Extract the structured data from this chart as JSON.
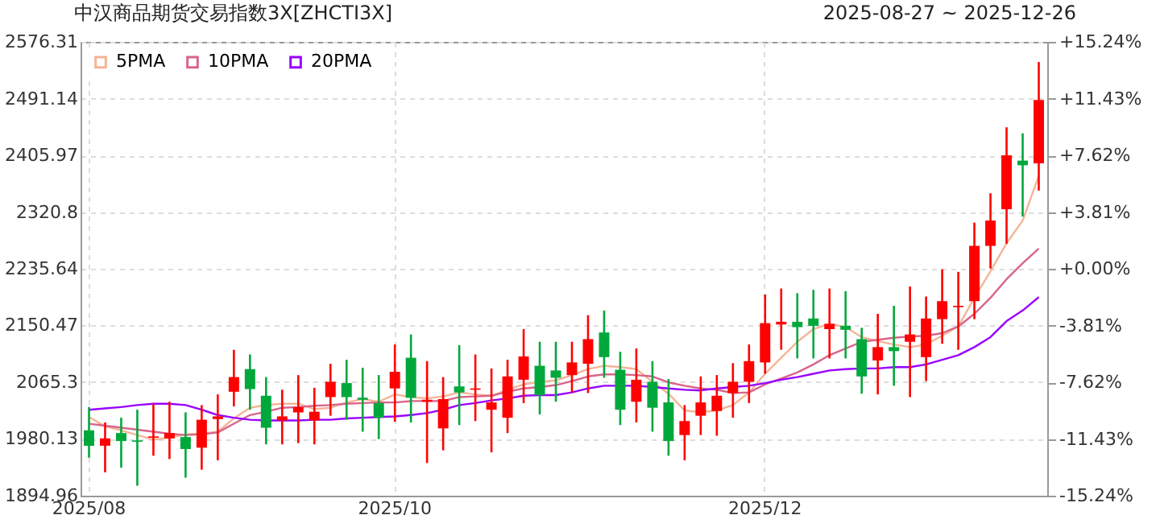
{
  "chart_data": {
    "type": "candlestick",
    "title": "中汉商品期货交易指数3X[ZHCTI3X]",
    "subtitle": "2025-08-27 ~ 2025-12-26",
    "categories": [
      "2025/08",
      null,
      null,
      null,
      null,
      null,
      null,
      null,
      null,
      null,
      null,
      null,
      null,
      null,
      null,
      null,
      null,
      null,
      null,
      "2025/10",
      null,
      null,
      null,
      null,
      null,
      null,
      null,
      null,
      null,
      null,
      null,
      null,
      null,
      null,
      null,
      null,
      null,
      null,
      null,
      null,
      null,
      null,
      "2025/12",
      null,
      null,
      null,
      null,
      null,
      null,
      null,
      null,
      null,
      null,
      null,
      null,
      null,
      null,
      null,
      null,
      null
    ],
    "ohlc": [
      [
        1993,
        2028,
        1952,
        1970
      ],
      [
        1970,
        2005,
        1930,
        1981
      ],
      [
        1989,
        2012,
        1937,
        1977
      ],
      [
        1978,
        2024,
        1910,
        1976
      ],
      [
        1982,
        2033,
        1955,
        1984
      ],
      [
        1981,
        2036,
        1950,
        1989
      ],
      [
        1983,
        2020,
        1922,
        1965
      ],
      [
        1967,
        2031,
        1934,
        2009
      ],
      [
        2010,
        2047,
        1948,
        2014
      ],
      [
        2051,
        2114,
        2029,
        2073
      ],
      [
        2085,
        2107,
        2024,
        2055
      ],
      [
        2045,
        2073,
        1972,
        1997
      ],
      [
        2008,
        2054,
        1972,
        2014
      ],
      [
        2020,
        2076,
        1974,
        2028
      ],
      [
        2008,
        2057,
        1972,
        2021
      ],
      [
        2043,
        2093,
        2015,
        2066
      ],
      [
        2064,
        2099,
        2009,
        2043
      ],
      [
        2042,
        2087,
        1991,
        2039
      ],
      [
        2034,
        2076,
        1980,
        2012
      ],
      [
        2056,
        2122,
        2006,
        2081
      ],
      [
        2102,
        2137,
        2005,
        2042
      ],
      [
        2036,
        2097,
        1944,
        2039
      ],
      [
        1996,
        2073,
        1963,
        2040
      ],
      [
        2059,
        2121,
        2001,
        2050
      ],
      [
        2054,
        2107,
        2007,
        2056
      ],
      [
        2024,
        2086,
        1960,
        2035
      ],
      [
        2012,
        2099,
        1989,
        2074
      ],
      [
        2069,
        2145,
        2034,
        2104
      ],
      [
        2090,
        2126,
        2017,
        2046
      ],
      [
        2083,
        2126,
        2036,
        2072
      ],
      [
        2076,
        2126,
        2050,
        2095
      ],
      [
        2093,
        2166,
        2049,
        2130
      ],
      [
        2140,
        2173,
        2072,
        2103
      ],
      [
        2084,
        2111,
        2001,
        2024
      ],
      [
        2036,
        2116,
        2005,
        2069
      ],
      [
        2066,
        2097,
        1991,
        2027
      ],
      [
        2035,
        2070,
        1955,
        1977
      ],
      [
        1986,
        2031,
        1948,
        2007
      ],
      [
        2015,
        2074,
        1986,
        2035
      ],
      [
        2022,
        2076,
        1985,
        2045
      ],
      [
        2049,
        2094,
        2012,
        2066
      ],
      [
        2066,
        2122,
        2034,
        2097
      ],
      [
        2095,
        2197,
        2078,
        2154
      ],
      [
        2152,
        2206,
        2114,
        2156
      ],
      [
        2156,
        2199,
        2101,
        2148
      ],
      [
        2161,
        2204,
        2101,
        2150
      ],
      [
        2145,
        2206,
        2101,
        2153
      ],
      [
        2150,
        2202,
        2101,
        2144
      ],
      [
        2130,
        2147,
        2048,
        2074
      ],
      [
        2098,
        2168,
        2047,
        2118
      ],
      [
        2118,
        2180,
        2060,
        2112
      ],
      [
        2126,
        2209,
        2043,
        2137
      ],
      [
        2103,
        2194,
        2067,
        2161
      ],
      [
        2160,
        2235,
        2123,
        2187
      ],
      [
        2178,
        2231,
        2114,
        2180
      ],
      [
        2187,
        2305,
        2160,
        2270
      ],
      [
        2270,
        2349,
        2236,
        2308
      ],
      [
        2325,
        2448,
        2273,
        2406
      ],
      [
        2398,
        2439,
        2314,
        2391
      ],
      [
        2394,
        2546,
        2353,
        2489
      ]
    ],
    "colors": [
      "#00a83c",
      "#ff0000",
      "#00a83c",
      "#00a83c",
      "#ff0000",
      "#ff0000",
      "#00a83c",
      "#ff0000",
      "#ff0000",
      "#ff0000",
      "#00a83c",
      "#00a83c",
      "#ff0000",
      "#ff0000",
      "#ff0000",
      "#ff0000",
      "#00a83c",
      "#00a83c",
      "#00a83c",
      "#ff0000",
      "#00a83c",
      "#ff0000",
      "#ff0000",
      "#00a83c",
      "#ff0000",
      "#ff0000",
      "#ff0000",
      "#ff0000",
      "#00a83c",
      "#00a83c",
      "#ff0000",
      "#ff0000",
      "#00a83c",
      "#00a83c",
      "#ff0000",
      "#00a83c",
      "#00a83c",
      "#ff0000",
      "#ff0000",
      "#ff0000",
      "#ff0000",
      "#ff0000",
      "#ff0000",
      "#ff0000",
      "#00a83c",
      "#00a83c",
      "#ff0000",
      "#00a83c",
      "#00a83c",
      "#ff0000",
      "#00a83c",
      "#ff0000",
      "#ff0000",
      "#ff0000",
      "#ff0000",
      "#ff0000",
      "#ff0000",
      "#ff0000",
      "#00a83c",
      "#ff0000"
    ],
    "series": [
      {
        "name": "5PMA",
        "type": "line",
        "color": "#f5b496",
        "values": [
          2013,
          1999,
          1993,
          1986,
          1979,
          1982,
          1987,
          1988,
          1991,
          2011,
          2027,
          2031,
          2033,
          2033,
          2025,
          2027,
          2035,
          2040,
          2036,
          2047,
          2043,
          2041,
          2044,
          2050,
          2047,
          2045,
          2054,
          2062,
          2066,
          2068,
          2076,
          2085,
          2090,
          2088,
          2085,
          2066,
          2048,
          2023,
          2020,
          2023,
          2031,
          2050,
          2078,
          2102,
          2126,
          2145,
          2153,
          2148,
          2133,
          2127,
          2122,
          2118,
          2122,
          2135,
          2149,
          2192,
          2232,
          2274,
          2308,
          2375
        ]
      },
      {
        "name": "10PMA",
        "type": "line",
        "color": "#d9648a",
        "values": [
          2003,
          2000,
          1997,
          1994,
          1991,
          1988,
          1986,
          1987,
          1990,
          2003,
          2016,
          2021,
          2027,
          2028,
          2030,
          2031,
          2033,
          2034,
          2035,
          2035,
          2037,
          2037,
          2037,
          2043,
          2044,
          2045,
          2051,
          2056,
          2058,
          2061,
          2067,
          2074,
          2077,
          2077,
          2076,
          2074,
          2065,
          2060,
          2056,
          2054,
          2049,
          2050,
          2062,
          2071,
          2080,
          2092,
          2106,
          2116,
          2126,
          2129,
          2132,
          2134,
          2135,
          2139,
          2149,
          2168,
          2192,
          2220,
          2244,
          2266
        ]
      },
      {
        "name": "20PMA",
        "type": "line",
        "color": "#9900ff",
        "values": [
          2024,
          2026,
          2028,
          2031,
          2033,
          2033,
          2031,
          2024,
          2016,
          2012,
          2009,
          2008,
          2008,
          2008,
          2009,
          2009,
          2011,
          2012,
          2013,
          2014,
          2016,
          2019,
          2024,
          2031,
          2034,
          2038,
          2041,
          2045,
          2046,
          2046,
          2050,
          2056,
          2060,
          2060,
          2060,
          2058,
          2056,
          2054,
          2053,
          2056,
          2058,
          2060,
          2064,
          2069,
          2073,
          2078,
          2083,
          2085,
          2086,
          2086,
          2088,
          2088,
          2092,
          2099,
          2106,
          2118,
          2133,
          2157,
          2173,
          2193
        ]
      }
    ],
    "ylim": [
      1894.96,
      2576.31
    ],
    "yticks": [
      1894.96,
      1980.13,
      2065.3,
      2150.47,
      2235.64,
      2320.8,
      2405.97,
      2491.14,
      2576.31
    ],
    "y2lim": [
      -15.24,
      15.24
    ],
    "y2ticks": [
      {
        "value": -15.24,
        "label": "-15.24%"
      },
      {
        "value": -11.43,
        "label": "-11.43%"
      },
      {
        "value": -7.62,
        "label": "-7.62%"
      },
      {
        "value": -3.81,
        "label": "-3.81%"
      },
      {
        "value": 0,
        "label": "+0.00%"
      },
      {
        "value": 3.81,
        "label": "+3.81%"
      },
      {
        "value": 7.62,
        "label": "+7.62%"
      },
      {
        "value": 11.43,
        "label": "+11.43%"
      },
      {
        "value": 15.24,
        "label": "+15.24%"
      }
    ],
    "grid": true,
    "legend": "top left"
  }
}
